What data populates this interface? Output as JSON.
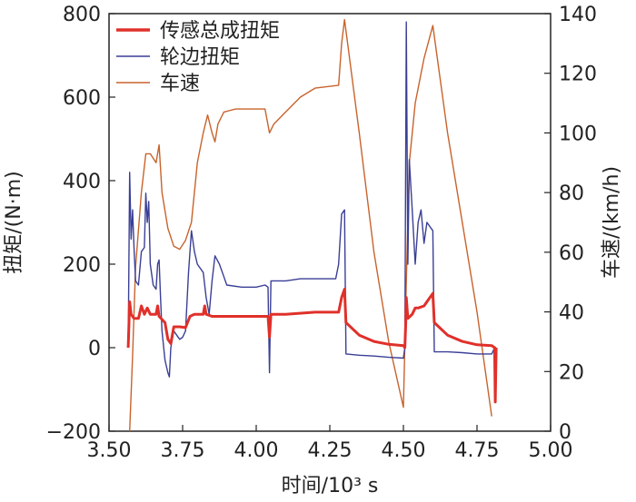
{
  "chart_data": {
    "type": "line",
    "xlabel": "时间/10³ s",
    "ylabel_left": "扭矩/(N·m)",
    "ylabel_right": "车速/(km/h)",
    "xlim": [
      3.5,
      5.0
    ],
    "ylim_left": [
      -200,
      800
    ],
    "ylim_right": [
      0,
      140
    ],
    "x_ticks": [
      "3.50",
      "3.75",
      "4.00",
      "4.25",
      "4.50",
      "4.75",
      "5.00"
    ],
    "y_left_ticks": [
      "−200",
      "0",
      "200",
      "400",
      "600",
      "800"
    ],
    "y_right_ticks": [
      "0",
      "20",
      "40",
      "60",
      "80",
      "100",
      "120",
      "140"
    ],
    "legend_position": "top-left",
    "colors": {
      "sensor": "#e0302a",
      "wheel": "#3a3f95",
      "speed": "#c8632c"
    },
    "series": [
      {
        "name": "传感总成扭矩",
        "axis": "left",
        "color_key": "sensor",
        "points": [
          [
            3.565,
            0
          ],
          [
            3.57,
            110
          ],
          [
            3.575,
            80
          ],
          [
            3.585,
            70
          ],
          [
            3.6,
            70
          ],
          [
            3.61,
            100
          ],
          [
            3.62,
            80
          ],
          [
            3.63,
            95
          ],
          [
            3.64,
            80
          ],
          [
            3.66,
            80
          ],
          [
            3.665,
            100
          ],
          [
            3.67,
            75
          ],
          [
            3.69,
            60
          ],
          [
            3.7,
            20
          ],
          [
            3.71,
            10
          ],
          [
            3.72,
            50
          ],
          [
            3.74,
            50
          ],
          [
            3.76,
            48
          ],
          [
            3.775,
            75
          ],
          [
            3.79,
            80
          ],
          [
            3.82,
            80
          ],
          [
            3.825,
            100
          ],
          [
            3.83,
            80
          ],
          [
            3.85,
            75
          ],
          [
            3.9,
            75
          ],
          [
            3.95,
            75
          ],
          [
            4.0,
            75
          ],
          [
            4.04,
            75
          ],
          [
            4.045,
            25
          ],
          [
            4.05,
            80
          ],
          [
            4.1,
            80
          ],
          [
            4.2,
            85
          ],
          [
            4.28,
            85
          ],
          [
            4.29,
            120
          ],
          [
            4.3,
            140
          ],
          [
            4.305,
            60
          ],
          [
            4.35,
            30
          ],
          [
            4.4,
            15
          ],
          [
            4.45,
            8
          ],
          [
            4.5,
            5
          ],
          [
            4.505,
            0
          ],
          [
            4.508,
            60
          ],
          [
            4.51,
            120
          ],
          [
            4.515,
            70
          ],
          [
            4.53,
            80
          ],
          [
            4.54,
            95
          ],
          [
            4.55,
            95
          ],
          [
            4.57,
            100
          ],
          [
            4.58,
            110
          ],
          [
            4.6,
            130
          ],
          [
            4.605,
            60
          ],
          [
            4.65,
            30
          ],
          [
            4.7,
            15
          ],
          [
            4.75,
            7
          ],
          [
            4.8,
            5
          ],
          [
            4.81,
            0
          ],
          [
            4.812,
            -130
          ],
          [
            4.815,
            0
          ]
        ]
      },
      {
        "name": "轮边扭矩",
        "axis": "left",
        "color_key": "wheel",
        "points": [
          [
            3.565,
            0
          ],
          [
            3.57,
            420
          ],
          [
            3.575,
            260
          ],
          [
            3.58,
            330
          ],
          [
            3.585,
            240
          ],
          [
            3.59,
            160
          ],
          [
            3.6,
            150
          ],
          [
            3.61,
            230
          ],
          [
            3.62,
            240
          ],
          [
            3.625,
            370
          ],
          [
            3.63,
            300
          ],
          [
            3.635,
            350
          ],
          [
            3.64,
            200
          ],
          [
            3.65,
            150
          ],
          [
            3.66,
            140
          ],
          [
            3.665,
            200
          ],
          [
            3.67,
            210
          ],
          [
            3.675,
            120
          ],
          [
            3.68,
            40
          ],
          [
            3.69,
            -30
          ],
          [
            3.7,
            -60
          ],
          [
            3.705,
            -70
          ],
          [
            3.71,
            0
          ],
          [
            3.72,
            40
          ],
          [
            3.73,
            30
          ],
          [
            3.74,
            20
          ],
          [
            3.75,
            25
          ],
          [
            3.76,
            40
          ],
          [
            3.77,
            180
          ],
          [
            3.78,
            280
          ],
          [
            3.79,
            230
          ],
          [
            3.8,
            200
          ],
          [
            3.82,
            180
          ],
          [
            3.83,
            120
          ],
          [
            3.84,
            80
          ],
          [
            3.85,
            160
          ],
          [
            3.86,
            220
          ],
          [
            3.875,
            200
          ],
          [
            3.89,
            170
          ],
          [
            3.9,
            150
          ],
          [
            3.95,
            145
          ],
          [
            4.0,
            145
          ],
          [
            4.03,
            150
          ],
          [
            4.04,
            145
          ],
          [
            4.045,
            -60
          ],
          [
            4.05,
            160
          ],
          [
            4.1,
            160
          ],
          [
            4.15,
            165
          ],
          [
            4.2,
            165
          ],
          [
            4.27,
            165
          ],
          [
            4.28,
            200
          ],
          [
            4.29,
            320
          ],
          [
            4.3,
            330
          ],
          [
            4.305,
            -15
          ],
          [
            4.35,
            -18
          ],
          [
            4.4,
            -20
          ],
          [
            4.45,
            -23
          ],
          [
            4.5,
            -25
          ],
          [
            4.505,
            0
          ],
          [
            4.51,
            780
          ],
          [
            4.515,
            200
          ],
          [
            4.52,
            450
          ],
          [
            4.53,
            330
          ],
          [
            4.54,
            200
          ],
          [
            4.55,
            300
          ],
          [
            4.56,
            330
          ],
          [
            4.57,
            250
          ],
          [
            4.58,
            300
          ],
          [
            4.6,
            280
          ],
          [
            4.605,
            -10
          ],
          [
            4.65,
            -10
          ],
          [
            4.7,
            -12
          ],
          [
            4.75,
            -15
          ],
          [
            4.8,
            -15
          ],
          [
            4.81,
            0
          ],
          [
            4.815,
            0
          ]
        ]
      },
      {
        "name": "车速",
        "axis": "right",
        "color_key": "speed",
        "points": [
          [
            3.57,
            0
          ],
          [
            3.58,
            25
          ],
          [
            3.59,
            55
          ],
          [
            3.61,
            80
          ],
          [
            3.625,
            93
          ],
          [
            3.64,
            93
          ],
          [
            3.66,
            90
          ],
          [
            3.67,
            96
          ],
          [
            3.68,
            80
          ],
          [
            3.7,
            68
          ],
          [
            3.72,
            62
          ],
          [
            3.74,
            61
          ],
          [
            3.76,
            64
          ],
          [
            3.78,
            70
          ],
          [
            3.8,
            90
          ],
          [
            3.82,
            100
          ],
          [
            3.835,
            106
          ],
          [
            3.85,
            100
          ],
          [
            3.86,
            97
          ],
          [
            3.87,
            103
          ],
          [
            3.89,
            107
          ],
          [
            3.93,
            108
          ],
          [
            3.98,
            108
          ],
          [
            4.03,
            108
          ],
          [
            4.045,
            100
          ],
          [
            4.06,
            103
          ],
          [
            4.1,
            107
          ],
          [
            4.15,
            112
          ],
          [
            4.2,
            115
          ],
          [
            4.28,
            116
          ],
          [
            4.29,
            130
          ],
          [
            4.3,
            138
          ],
          [
            4.35,
            100
          ],
          [
            4.4,
            60
          ],
          [
            4.45,
            30
          ],
          [
            4.5,
            8
          ],
          [
            4.51,
            50
          ],
          [
            4.52,
            90
          ],
          [
            4.54,
            110
          ],
          [
            4.57,
            125
          ],
          [
            4.6,
            136
          ],
          [
            4.65,
            100
          ],
          [
            4.7,
            70
          ],
          [
            4.75,
            40
          ],
          [
            4.8,
            5
          ]
        ]
      }
    ]
  }
}
